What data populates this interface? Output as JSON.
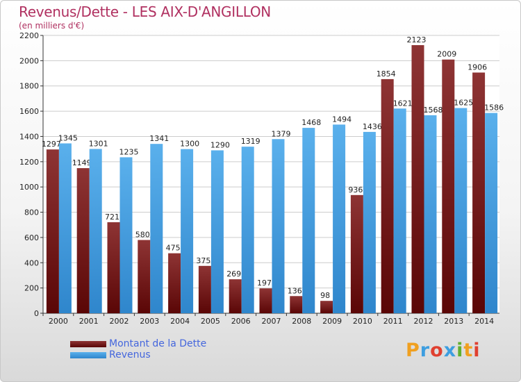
{
  "chart_data": {
    "type": "bar",
    "title": "Revenus/Dette - LES AIX-D'ANGILLON",
    "subtitle": "(en milliers d'€)",
    "categories": [
      "2000",
      "2001",
      "2002",
      "2003",
      "2004",
      "2005",
      "2006",
      "2007",
      "2008",
      "2009",
      "2010",
      "2011",
      "2012",
      "2013",
      "2014"
    ],
    "series": [
      {
        "name": "Montant de la Dette",
        "color": "#7a1a1a",
        "values": [
          1297,
          1149,
          721,
          580,
          475,
          375,
          269,
          197,
          136,
          98,
          936,
          1854,
          2123,
          2009,
          1906
        ]
      },
      {
        "name": "Revenus",
        "color": "#3d9ee0",
        "values": [
          1345,
          1301,
          1235,
          1341,
          1300,
          1290,
          1319,
          1379,
          1468,
          1494,
          1436,
          1621,
          1568,
          1625,
          1586
        ]
      }
    ],
    "ylim": [
      0,
      2200
    ],
    "yticks": [
      0,
      200,
      400,
      600,
      800,
      1000,
      1200,
      1400,
      1600,
      1800,
      2000,
      2200
    ],
    "grid": true,
    "legend": "bottom-left"
  },
  "branding": {
    "logo_letters": [
      "P",
      "r",
      "o",
      "x",
      "i",
      "t",
      "i"
    ],
    "logo_colors": [
      "#f0a020",
      "#3d9ee0",
      "#e04030",
      "#3d9ee0",
      "#60b030",
      "#f0a020",
      "#e04030"
    ]
  }
}
